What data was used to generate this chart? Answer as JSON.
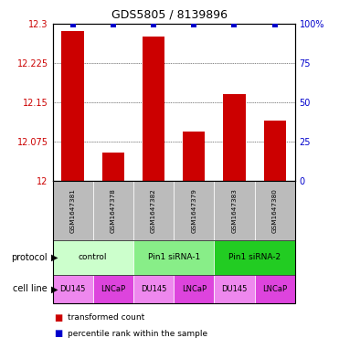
{
  "title": "GDS5805 / 8139896",
  "samples": [
    "GSM1647381",
    "GSM1647378",
    "GSM1647382",
    "GSM1647379",
    "GSM1647383",
    "GSM1647380"
  ],
  "red_values": [
    12.285,
    12.055,
    12.275,
    12.095,
    12.165,
    12.115
  ],
  "blue_values": [
    99,
    99,
    99,
    99,
    99,
    99
  ],
  "ylim_left": [
    12.0,
    12.3
  ],
  "ylim_right": [
    0,
    100
  ],
  "yticks_left": [
    12.0,
    12.075,
    12.15,
    12.225,
    12.3
  ],
  "yticks_right": [
    0,
    25,
    50,
    75,
    100
  ],
  "ytick_labels_left": [
    "12",
    "12.075",
    "12.15",
    "12.225",
    "12.3"
  ],
  "ytick_labels_right": [
    "0",
    "25",
    "50",
    "75",
    "100%"
  ],
  "protocol_groups": [
    {
      "label": "control",
      "cols": [
        0,
        1
      ],
      "color": "#ccffcc"
    },
    {
      "label": "Pin1 siRNA-1",
      "cols": [
        2,
        3
      ],
      "color": "#88ee88"
    },
    {
      "label": "Pin1 siRNA-2",
      "cols": [
        4,
        5
      ],
      "color": "#22cc22"
    }
  ],
  "cell_lines": [
    "DU145",
    "LNCaP",
    "DU145",
    "LNCaP",
    "DU145",
    "LNCaP"
  ],
  "du145_color": "#ee88ee",
  "lncap_color": "#dd44dd",
  "bar_color": "#cc0000",
  "dot_color": "#0000cc",
  "sample_bg_color": "#bbbbbb",
  "legend_red": "transformed count",
  "legend_blue": "percentile rank within the sample",
  "protocol_label": "protocol",
  "cell_line_label": "cell line"
}
